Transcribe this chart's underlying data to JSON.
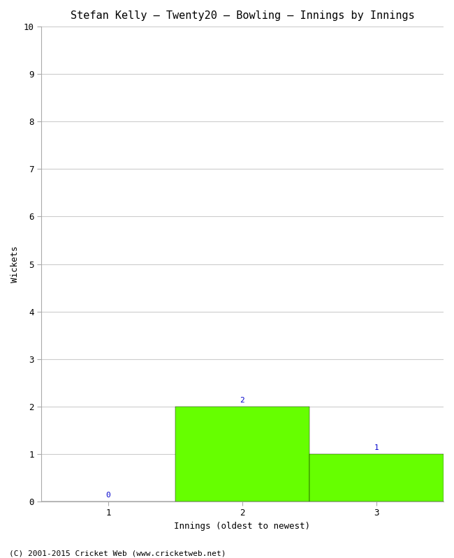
{
  "title": "Stefan Kelly – Twenty20 – Bowling – Innings by Innings",
  "xlabel": "Innings (oldest to newest)",
  "ylabel": "Wickets",
  "categories": [
    "1",
    "2",
    "3"
  ],
  "values": [
    0,
    2,
    1
  ],
  "bar_color": "#66ff00",
  "bar_edge_color": "#000000",
  "ylim": [
    0,
    10
  ],
  "yticks": [
    0,
    1,
    2,
    3,
    4,
    5,
    6,
    7,
    8,
    9,
    10
  ],
  "background_color": "#ffffff",
  "grid_color": "#cccccc",
  "annotation_color": "#0000cc",
  "footer": "(C) 2001-2015 Cricket Web (www.cricketweb.net)",
  "title_fontsize": 11,
  "axis_label_fontsize": 9,
  "tick_fontsize": 9,
  "annotation_fontsize": 8,
  "footer_fontsize": 8,
  "bar_width": 1.0,
  "xlim_left": 0.5,
  "xlim_right": 3.5
}
